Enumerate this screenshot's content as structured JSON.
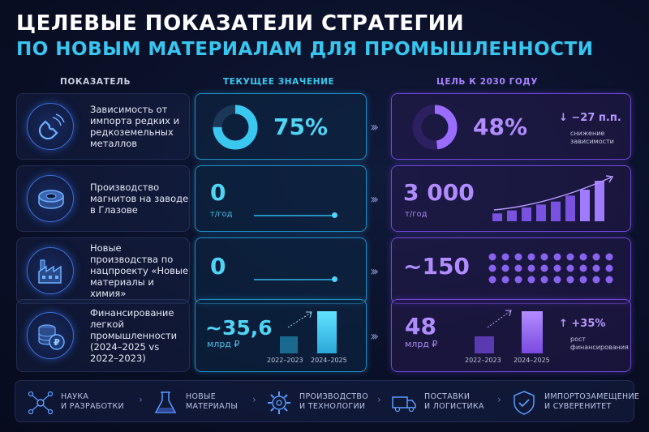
{
  "title": {
    "line1": "ЦЕЛЕВЫЕ ПОКАЗАТЕЛИ СТРАТЕГИИ",
    "line2": "ПО НОВЫМ МАТЕРИАЛАМ ДЛЯ ПРОМЫШЛЕННОСТИ"
  },
  "columns": {
    "indicator": "ПОКАЗАТЕЛЬ",
    "current": "ТЕКУЩЕЕ ЗНАЧЕНИЕ",
    "target": "ЦЕЛЬ К 2030 ГОДУ"
  },
  "colors": {
    "current_accent": "#3ac8f0",
    "target_accent": "#a882ff",
    "background": "#0a1028"
  },
  "rows": [
    {
      "icon": "magnet-icon",
      "label": "Зависимость от импорта редких и редкоземельных металлов",
      "current": {
        "value": "75%",
        "fill": 0.75
      },
      "target": {
        "value": "48%",
        "fill": 0.48,
        "delta": "↓ −27 п.п.",
        "note": [
          "снижение",
          "зависимости"
        ]
      }
    },
    {
      "icon": "magnet-ring-icon",
      "label": "Производство магнитов на заводе в Глазове",
      "current": {
        "value": "0",
        "unit": "т/год"
      },
      "target": {
        "value": "3 000",
        "unit": "т/год",
        "bars": [
          1,
          2,
          3,
          4,
          5,
          7,
          9,
          12
        ]
      }
    },
    {
      "icon": "factory-icon",
      "label": "Новые производства по нацпроекту «Новые материалы и химия»",
      "current": {
        "value": "0"
      },
      "target": {
        "value": "~150",
        "dots": 30
      }
    },
    {
      "icon": "coins-icon",
      "label": "Финансирование легкой промышленности (2024–2025 vs 2022–2023)",
      "current": {
        "value": "~35,6",
        "unit": "млрд ₽",
        "years": [
          "2022–2023",
          "2024–2025"
        ]
      },
      "target": {
        "value": "48",
        "unit": "млрд ₽",
        "years": [
          "2022–2023",
          "2024–2025"
        ],
        "delta": "↑ +35%",
        "note": [
          "рост",
          "финансирования"
        ]
      }
    }
  ],
  "footer": [
    {
      "icon": "network-icon",
      "label": [
        "НАУКА",
        "И РАЗРАБОТКИ"
      ]
    },
    {
      "icon": "flask-icon",
      "label": [
        "НОВЫЕ",
        "МАТЕРИАЛЫ"
      ]
    },
    {
      "icon": "gear-icon",
      "label": [
        "ПРОИЗВОДСТВО",
        "И ТЕХНОЛОГИИ"
      ]
    },
    {
      "icon": "truck-icon",
      "label": [
        "ПОСТАВКИ",
        "И ЛОГИСТИКА"
      ]
    },
    {
      "icon": "shield-icon",
      "label": [
        "ИМПОРТОЗАМЕЩЕНИЕ",
        "И СУВЕРЕНИТЕТ"
      ]
    }
  ]
}
